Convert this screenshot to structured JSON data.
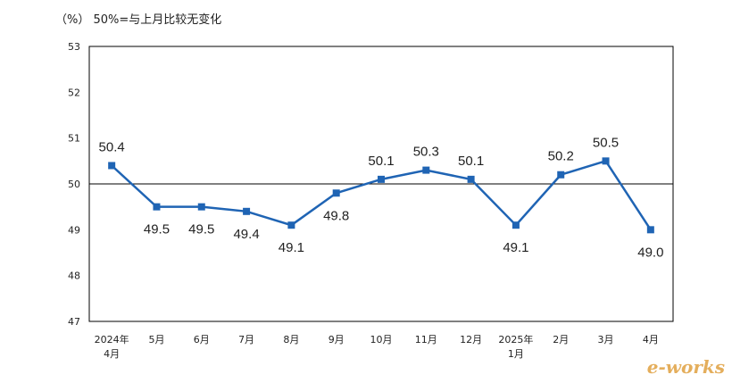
{
  "unit_note": "（%） 50%=与上月比较无变化",
  "watermark": "e-works",
  "colors": {
    "series": "#1f64b4",
    "axis": "#000000",
    "text": "#222222"
  },
  "chart_data": {
    "type": "line",
    "title": "",
    "xlabel": "",
    "ylabel": "",
    "ylim": [
      47,
      53
    ],
    "yticks": [
      47,
      48,
      49,
      50,
      51,
      52,
      53
    ],
    "reference_line": 50,
    "grid": false,
    "categories": [
      [
        "2024年",
        "4月"
      ],
      [
        "5月"
      ],
      [
        "6月"
      ],
      [
        "7月"
      ],
      [
        "8月"
      ],
      [
        "9月"
      ],
      [
        "10月"
      ],
      [
        "11月"
      ],
      [
        "12月"
      ],
      [
        "2025年",
        "1月"
      ],
      [
        "2月"
      ],
      [
        "3月"
      ],
      [
        "4月"
      ]
    ],
    "series": [
      {
        "values": [
          50.4,
          49.5,
          49.5,
          49.4,
          49.1,
          49.8,
          50.1,
          50.3,
          50.1,
          49.1,
          50.2,
          50.5,
          49.0
        ],
        "labels": [
          "50.4",
          "49.5",
          "49.5",
          "49.4",
          "49.1",
          "49.8",
          "50.1",
          "50.3",
          "50.1",
          "49.1",
          "50.2",
          "50.5",
          "49.0"
        ],
        "label_pos": [
          "above",
          "below",
          "below",
          "below",
          "below",
          "below",
          "above",
          "above",
          "above",
          "below",
          "above",
          "above",
          "below"
        ]
      }
    ]
  }
}
